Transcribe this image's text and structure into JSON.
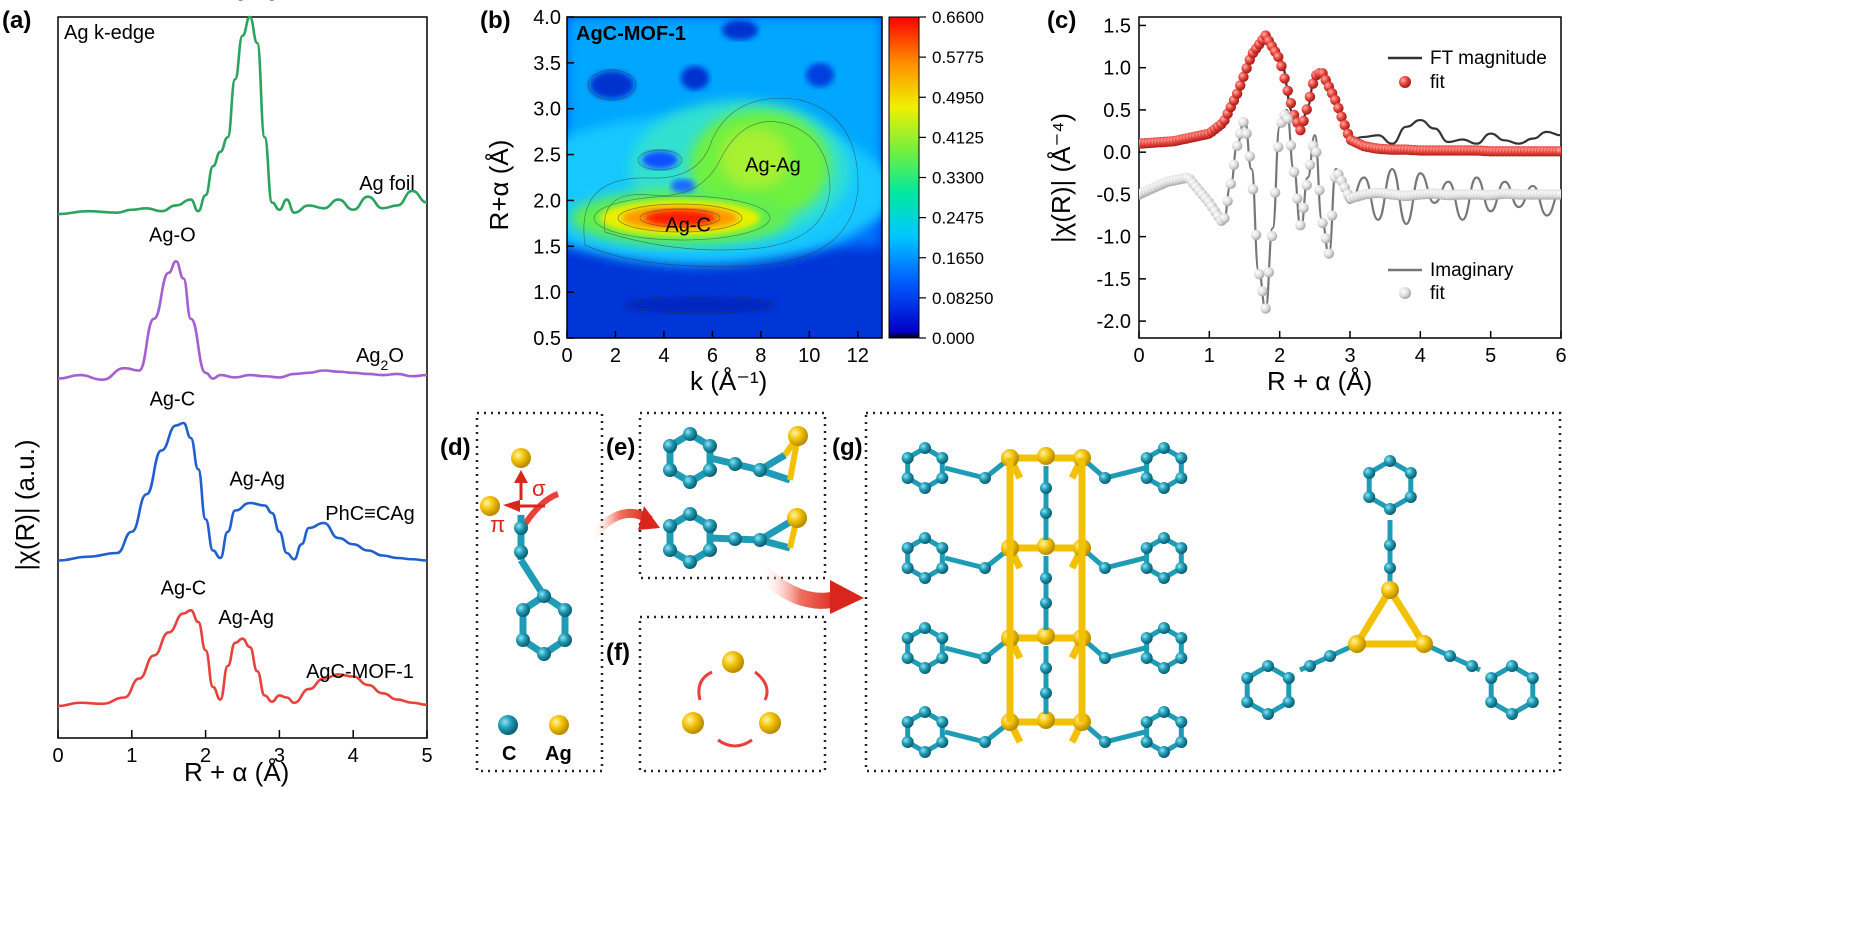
{
  "panels": {
    "a": "(a)",
    "b": "(b)",
    "c": "(c)",
    "d": "(d)",
    "e": "(e)",
    "f": "(f)",
    "g": "(g)"
  },
  "chart_data": [
    {
      "type": "line",
      "panel": "a",
      "title": "Ag k-edge",
      "xlabel": "R + α (Å)",
      "ylabel": "|χ(R)| (a.u.)",
      "xlim": [
        0,
        5
      ],
      "xticks": [
        "0",
        "1",
        "2",
        "3",
        "4",
        "5"
      ],
      "series": [
        {
          "name": "Ag foil",
          "color": "#2ca25f",
          "offset": 3.0,
          "x": [
            0,
            0.4,
            0.8,
            1.0,
            1.2,
            1.4,
            1.6,
            1.8,
            1.9,
            2.0,
            2.1,
            2.2,
            2.3,
            2.4,
            2.5,
            2.6,
            2.7,
            2.8,
            2.9,
            3.0,
            3.1,
            3.2,
            3.4,
            3.6,
            3.8,
            4.0,
            4.2,
            4.4,
            4.6,
            4.8,
            5.0
          ],
          "y": [
            0.02,
            0.04,
            0.03,
            0.05,
            0.06,
            0.04,
            0.08,
            0.12,
            0.04,
            0.15,
            0.35,
            0.45,
            0.55,
            0.95,
            1.25,
            1.38,
            1.2,
            0.55,
            0.1,
            0.05,
            0.12,
            0.03,
            0.08,
            0.06,
            0.12,
            0.05,
            0.14,
            0.06,
            0.08,
            0.18,
            0.1
          ],
          "annotations": [
            {
              "x": 2.6,
              "y": 1.52,
              "text": "Ag-Ag"
            }
          ]
        },
        {
          "name": "Ag2O",
          "color": "#a45fd0",
          "offset": 2.0,
          "x": [
            0,
            0.3,
            0.6,
            0.9,
            1.1,
            1.3,
            1.5,
            1.6,
            1.7,
            1.8,
            2.0,
            2.1,
            2.2,
            2.4,
            2.6,
            2.8,
            3.0,
            3.2,
            3.4,
            3.6,
            3.8,
            4.0,
            4.2,
            4.4,
            4.6,
            4.8,
            5.0
          ],
          "y": [
            0.03,
            0.06,
            0.02,
            0.12,
            0.1,
            0.55,
            0.95,
            1.05,
            0.9,
            0.55,
            0.08,
            0.03,
            0.06,
            0.04,
            0.06,
            0.05,
            0.04,
            0.07,
            0.08,
            0.1,
            0.09,
            0.08,
            0.07,
            0.06,
            0.07,
            0.05,
            0.06
          ],
          "annotations": [
            {
              "x": 1.55,
              "y": 1.22,
              "text": "Ag-O"
            }
          ]
        },
        {
          "name": "PhC≡CAg",
          "color": "#1f5fcf",
          "offset": 1.0,
          "x": [
            0,
            0.4,
            0.8,
            1.0,
            1.2,
            1.4,
            1.6,
            1.7,
            1.8,
            1.9,
            2.0,
            2.1,
            2.2,
            2.3,
            2.4,
            2.6,
            2.8,
            2.9,
            3.0,
            3.1,
            3.2,
            3.3,
            3.4,
            3.6,
            3.8,
            4.0,
            4.2,
            4.4,
            4.6,
            4.8,
            5.0
          ],
          "y": [
            0.02,
            0.05,
            0.08,
            0.25,
            0.55,
            0.9,
            1.1,
            1.12,
            1.0,
            0.75,
            0.35,
            0.1,
            0.04,
            0.25,
            0.42,
            0.48,
            0.46,
            0.4,
            0.25,
            0.08,
            0.03,
            0.15,
            0.28,
            0.32,
            0.2,
            0.15,
            0.1,
            0.06,
            0.04,
            0.03,
            0.02
          ],
          "annotations": [
            {
              "x": 1.55,
              "y": 1.26,
              "text": "Ag-C"
            },
            {
              "x": 2.7,
              "y": 0.62,
              "text": "Ag-Ag"
            }
          ]
        },
        {
          "name": "AgC-MOF-1",
          "color": "#e8403a",
          "offset": 0.0,
          "x": [
            0,
            0.3,
            0.6,
            0.9,
            1.1,
            1.3,
            1.5,
            1.7,
            1.8,
            1.9,
            2.0,
            2.1,
            2.2,
            2.3,
            2.4,
            2.5,
            2.6,
            2.7,
            2.8,
            2.9,
            3.0,
            3.1,
            3.2,
            3.4,
            3.6,
            3.8,
            4.0,
            4.2,
            4.4,
            4.6,
            4.8,
            5.0
          ],
          "y": [
            0.02,
            0.05,
            0.04,
            0.1,
            0.28,
            0.5,
            0.72,
            0.9,
            0.93,
            0.82,
            0.55,
            0.2,
            0.08,
            0.4,
            0.62,
            0.66,
            0.58,
            0.35,
            0.12,
            0.06,
            0.12,
            0.1,
            0.05,
            0.18,
            0.28,
            0.32,
            0.3,
            0.22,
            0.14,
            0.08,
            0.05,
            0.03
          ],
          "annotations": [
            {
              "x": 1.7,
              "y": 1.08,
              "text": "Ag-C"
            },
            {
              "x": 2.55,
              "y": 0.8,
              "text": "Ag-Ag"
            }
          ]
        }
      ]
    },
    {
      "type": "heatmap",
      "panel": "b",
      "title": "AgC-MOF-1",
      "xlabel": "k (Å⁻¹)",
      "ylabel": "R+α (Å)",
      "xlim": [
        0,
        13
      ],
      "ylim": [
        0.5,
        4.0
      ],
      "xticks": [
        "0",
        "2",
        "4",
        "6",
        "8",
        "10",
        "12"
      ],
      "yticks": [
        "0.5",
        "1.0",
        "1.5",
        "2.0",
        "2.5",
        "3.0",
        "3.5",
        "4.0"
      ],
      "colorbar_ticks": [
        "0.6600",
        "0.5775",
        "0.4950",
        "0.4125",
        "0.3300",
        "0.2475",
        "0.1650",
        "0.08250",
        "0.000"
      ],
      "peaks": [
        {
          "label": "Ag-C",
          "k": 5.0,
          "R": 1.75,
          "value": 0.66
        },
        {
          "label": "Ag-Ag",
          "k": 8.5,
          "R": 2.4,
          "value": 0.38
        }
      ]
    },
    {
      "type": "line",
      "panel": "c",
      "xlabel": "R + α (Å)",
      "ylabel": "|χ(R)| (Å⁻⁴)",
      "xlim": [
        0,
        6
      ],
      "ylim": [
        -2.2,
        1.6
      ],
      "xticks": [
        "0",
        "1",
        "2",
        "3",
        "4",
        "5",
        "6"
      ],
      "yticks": [
        "1.5",
        "1.0",
        "0.5",
        "0.0",
        "-0.5",
        "-1.0",
        "-1.5",
        "-2.0"
      ],
      "series": [
        {
          "name": "FT magnitude",
          "style": "line",
          "color": "#333333",
          "x": [
            0,
            0.5,
            1.0,
            1.2,
            1.4,
            1.6,
            1.8,
            2.0,
            2.2,
            2.3,
            2.4,
            2.5,
            2.6,
            2.8,
            3.0,
            3.2,
            3.4,
            3.6,
            3.8,
            4.0,
            4.2,
            4.4,
            4.6,
            4.8,
            5.0,
            5.2,
            5.4,
            5.6,
            5.8,
            6.0
          ],
          "y": [
            0.1,
            0.13,
            0.22,
            0.35,
            0.7,
            1.15,
            1.38,
            1.1,
            0.45,
            0.25,
            0.55,
            0.9,
            0.95,
            0.6,
            0.15,
            0.18,
            0.2,
            0.1,
            0.3,
            0.38,
            0.28,
            0.12,
            0.15,
            0.1,
            0.22,
            0.14,
            0.1,
            0.16,
            0.24,
            0.2
          ]
        },
        {
          "name": "fit",
          "style": "marker",
          "color": "#e8403a",
          "x": [
            0,
            0.5,
            1.0,
            1.2,
            1.4,
            1.6,
            1.8,
            2.0,
            2.2,
            2.3,
            2.4,
            2.5,
            2.6,
            2.8,
            3.0,
            3.2,
            3.4,
            3.6,
            3.8,
            4.0,
            4.2,
            4.4,
            4.6,
            4.8,
            5.0,
            5.2,
            5.4,
            5.6,
            5.8,
            6.0
          ],
          "y": [
            0.1,
            0.13,
            0.22,
            0.35,
            0.7,
            1.15,
            1.38,
            1.1,
            0.45,
            0.25,
            0.55,
            0.9,
            0.95,
            0.6,
            0.15,
            0.07,
            0.04,
            0.03,
            0.03,
            0.02,
            0.02,
            0.02,
            0.02,
            0.02,
            0.01,
            0.01,
            0.01,
            0.01,
            0.01,
            0.01
          ]
        },
        {
          "name": "Imaginary",
          "style": "line",
          "color": "#777777",
          "x": [
            0,
            0.4,
            0.7,
            1.0,
            1.2,
            1.3,
            1.4,
            1.5,
            1.6,
            1.7,
            1.8,
            1.9,
            2.0,
            2.1,
            2.2,
            2.3,
            2.4,
            2.5,
            2.6,
            2.7,
            2.8,
            3.0,
            3.2,
            3.4,
            3.6,
            3.8,
            4.0,
            4.2,
            4.4,
            4.6,
            4.8,
            5.0,
            5.2,
            5.4,
            5.6,
            5.8,
            6.0
          ],
          "y": [
            -0.5,
            -0.35,
            -0.3,
            -0.6,
            -0.85,
            -0.4,
            0.1,
            0.4,
            -0.2,
            -1.4,
            -1.85,
            -0.9,
            0.3,
            0.5,
            -0.2,
            -0.9,
            -0.3,
            0.2,
            -0.8,
            -1.2,
            -0.2,
            -0.6,
            -0.3,
            -0.8,
            -0.2,
            -0.85,
            -0.25,
            -0.6,
            -0.35,
            -0.8,
            -0.3,
            -0.7,
            -0.35,
            -0.65,
            -0.4,
            -0.75,
            -0.45
          ]
        },
        {
          "name": "fit",
          "style": "marker",
          "color": "#dddddd",
          "x": [
            0,
            0.4,
            0.7,
            1.0,
            1.2,
            1.3,
            1.4,
            1.5,
            1.6,
            1.7,
            1.8,
            1.9,
            2.0,
            2.1,
            2.2,
            2.3,
            2.4,
            2.5,
            2.6,
            2.7,
            2.8,
            3.0,
            3.2,
            3.4,
            3.6,
            3.8,
            4.0,
            4.2,
            4.4,
            4.6,
            4.8,
            5.0,
            5.2,
            5.4,
            5.6,
            5.8,
            6.0
          ],
          "y": [
            -0.5,
            -0.35,
            -0.3,
            -0.6,
            -0.85,
            -0.4,
            0.1,
            0.4,
            -0.2,
            -1.4,
            -1.85,
            -0.9,
            0.3,
            0.5,
            -0.2,
            -0.9,
            -0.3,
            0.2,
            -0.8,
            -1.2,
            -0.2,
            -0.55,
            -0.5,
            -0.48,
            -0.5,
            -0.52,
            -0.5,
            -0.49,
            -0.51,
            -0.5,
            -0.5,
            -0.51,
            -0.49,
            -0.5,
            -0.5,
            -0.5,
            -0.5
          ]
        }
      ]
    }
  ],
  "schematic": {
    "d": {
      "sigma": "σ",
      "pi": "π",
      "legend_c": "C",
      "legend_ag": "Ag",
      "color_c": "#1e9bb5",
      "color_ag": "#f2c200"
    }
  }
}
